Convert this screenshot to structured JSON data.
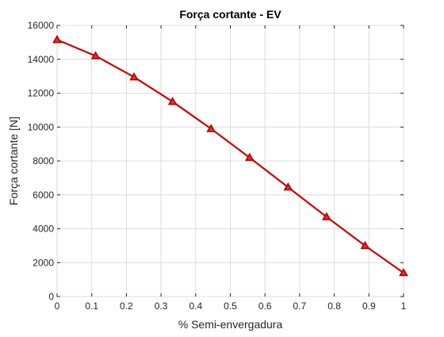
{
  "colors": {
    "series_line": "#cc0000",
    "marker_fill": "#e03030",
    "marker_edge": "#b00000",
    "background": "#ffffff"
  },
  "chart_data": {
    "type": "line",
    "title": "Força cortante - EV",
    "xlabel": "% Semi-envergadura",
    "ylabel": "Força cortante [N]",
    "xlim": [
      0,
      1
    ],
    "ylim": [
      0,
      16000
    ],
    "xticks": [
      "0",
      "0.1",
      "0.2",
      "0.3",
      "0.4",
      "0.5",
      "0.6",
      "0.7",
      "0.8",
      "0.9",
      "1"
    ],
    "yticks": [
      "0",
      "2000",
      "4000",
      "6000",
      "8000",
      "10000",
      "12000",
      "14000",
      "16000"
    ],
    "grid": true,
    "marker": "triangle",
    "series": [
      {
        "x": [
          0,
          0.1111,
          0.2222,
          0.3333,
          0.4444,
          0.5556,
          0.6667,
          0.7778,
          0.8889,
          1.0
        ],
        "values": [
          15150,
          14200,
          12950,
          11500,
          9900,
          8200,
          6450,
          4700,
          3000,
          1400
        ]
      }
    ]
  }
}
